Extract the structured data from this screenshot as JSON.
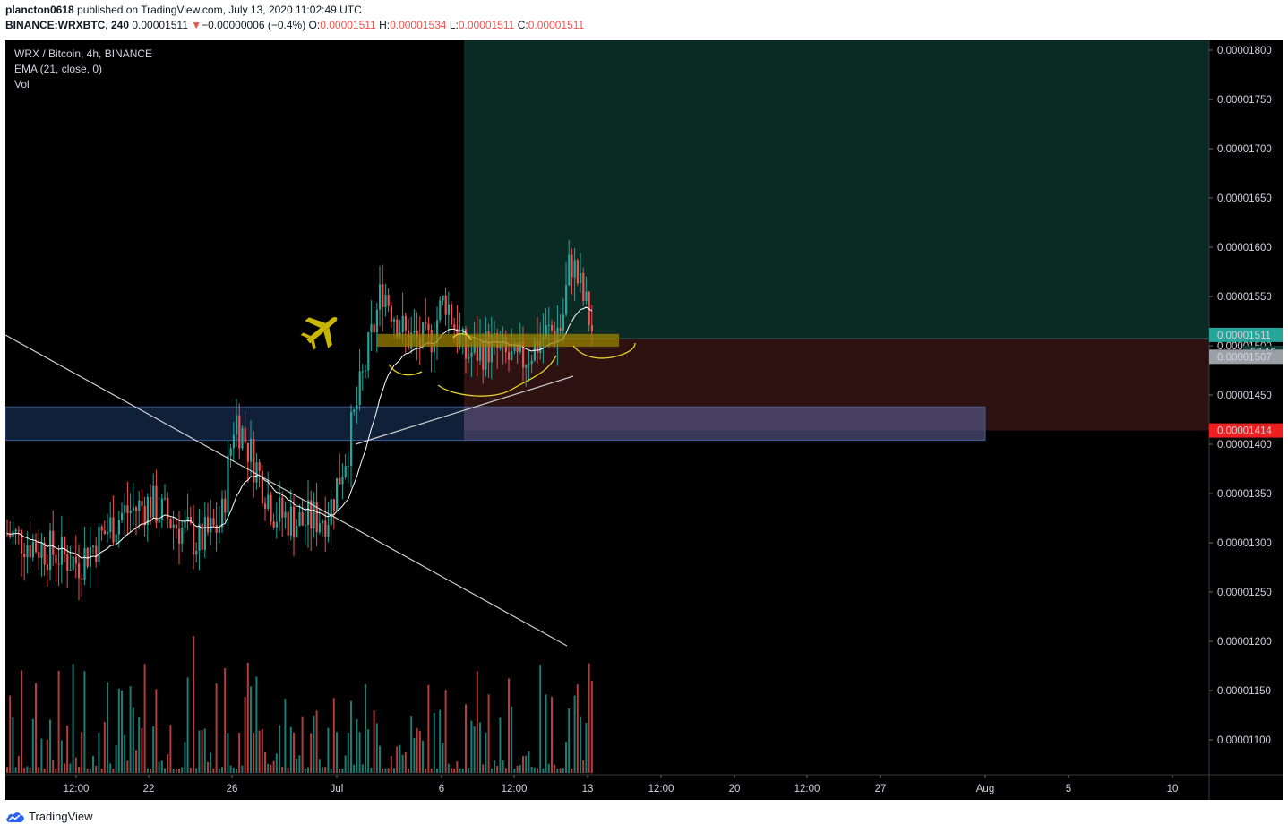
{
  "header": {
    "line1_user": "plancton0618",
    "line1_rest": " published on TradingView.com, July 13, 2020 11:02:49 UTC",
    "symbol": "BINANCE:WRXBTC, 240",
    "price": "0.00001511",
    "change_arrow": "▼",
    "change": "−0.00000006 (−0.4%)",
    "o_label": "O:",
    "o": "0.00001511",
    "h_label": "H:",
    "h": "0.00001534",
    "l_label": "L:",
    "l": "0.00001511",
    "c_label": "C:",
    "c": "0.00001511"
  },
  "legend": {
    "title": "WRX / Bitcoin, 4h, BINANCE",
    "ema": "EMA (21, close, 0)",
    "vol": "Vol"
  },
  "footer": {
    "brand": "TradingView"
  },
  "colors": {
    "background": "#000000",
    "up": "#26a69a",
    "down": "#ef5350",
    "target_zone": "#0a2a24",
    "stop_zone": "#2e1212",
    "support_box": "#1e3a66",
    "entry_box": "#9a8200",
    "annotation": "#e6d22a",
    "ema": "#ffffff"
  },
  "chart_data": {
    "type": "candlestick",
    "symbol": "WRX / Bitcoin",
    "interval": "4h",
    "exchange": "BINANCE",
    "indicators": [
      "EMA (21, close, 0)",
      "Vol"
    ],
    "y_axis": {
      "ticks": [
        "0.00001800",
        "0.00001750",
        "0.00001700",
        "0.00001650",
        "0.00001600",
        "0.00001550",
        "0.00001500",
        "0.00001450",
        "0.00001400",
        "0.00001350",
        "0.00001300",
        "0.00001250",
        "0.00001200",
        "0.00001150",
        "0.00001100"
      ],
      "ylim": [
        1.06e-05,
        1.812e-05
      ]
    },
    "x_axis": {
      "ticks": [
        "12:00",
        "22",
        "26",
        "Jul",
        "6",
        "12:00",
        "13",
        "12:00",
        "20",
        "12:00",
        "27",
        "Aug",
        "5",
        "10"
      ]
    },
    "price_labels": {
      "last_price": "0.00001511",
      "countdown": "57:12",
      "entry": "0.00001507",
      "stop": "0.00001414"
    },
    "approx_close_path": {
      "dates": [
        "Jun 18",
        "Jun 20",
        "Jun 21",
        "Jun 22",
        "Jun 24",
        "Jun 25",
        "Jun 26",
        "Jun 28",
        "Jun 29",
        "Jun 30",
        "Jul 1",
        "Jul 2",
        "Jul 3",
        "Jul 4",
        "Jul 5",
        "Jul 6",
        "Jul 7",
        "Jul 8",
        "Jul 9",
        "Jul 10",
        "Jul 11",
        "Jul 12",
        "Jul 13"
      ],
      "values": [
        1.31e-05,
        1.28e-05,
        1.33e-05,
        1.34e-05,
        1.3e-05,
        1.32e-05,
        1.43e-05,
        1.33e-05,
        1.32e-05,
        1.33e-05,
        1.4e-05,
        1.56e-05,
        1.51e-05,
        1.5e-05,
        1.55e-05,
        1.49e-05,
        1.5e-05,
        1.48e-05,
        1.51e-05,
        1.52e-05,
        1.59e-05,
        1.53e-05,
        1.511e-05
      ]
    },
    "position": {
      "entry": 1.507e-05,
      "target": 1.812e-05,
      "stop": 1.414e-05
    },
    "zones": {
      "support": [
        1.404e-05,
        1.438e-05
      ],
      "entry_band": [
        1.499e-05,
        1.512e-05
      ]
    }
  }
}
